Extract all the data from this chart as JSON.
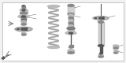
{
  "bg_color": "#f2f2f2",
  "border_color": "#bbbbbb",
  "white": "#ffffff",
  "dark": "#555555",
  "mid": "#888888",
  "light": "#bbbbbb",
  "vlight": "#d5d5d5",
  "spring_color": "#aaaaaa",
  "line_color": "#666666",
  "fig_width": 1.6,
  "fig_height": 0.8,
  "dpi": 100
}
